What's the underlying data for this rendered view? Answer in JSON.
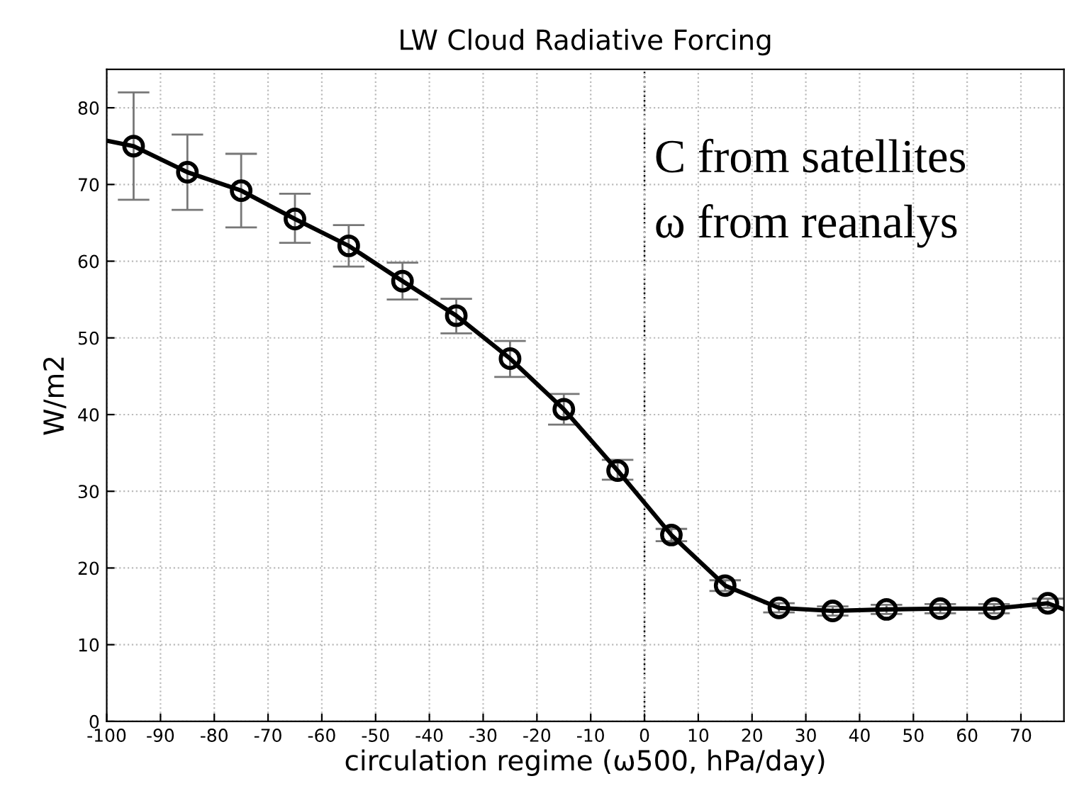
{
  "chart_data": {
    "type": "line",
    "title": "LW Cloud Radiative Forcing",
    "xlabel": "circulation regime (ω500, hPa/day)",
    "ylabel": "W/m2",
    "annotations": [
      "C from satellites",
      "ω from reanalys"
    ],
    "xlim": [
      -100,
      78
    ],
    "xticks": [
      -100,
      -90,
      -80,
      -70,
      -60,
      -50,
      -40,
      -30,
      -20,
      -10,
      0,
      10,
      20,
      30,
      40,
      50,
      60,
      70
    ],
    "ylim": [
      0,
      85
    ],
    "yticks": [
      0,
      10,
      20,
      30,
      40,
      50,
      60,
      70,
      80
    ],
    "grid": true,
    "legend": false,
    "ref_lines": [
      {
        "axis": "x",
        "value": 0,
        "line_style": "dotted",
        "color": "#000000"
      }
    ],
    "series": [
      {
        "color": "#000000",
        "marker": "none",
        "x": [
          -100,
          -95,
          -85,
          -75,
          -65,
          -55,
          -45,
          -35,
          -25,
          -15,
          -5,
          5,
          15,
          25,
          35,
          45,
          55,
          65,
          75,
          78
        ],
        "values": [
          75.7,
          75.0,
          71.6,
          69.2,
          65.5,
          62.0,
          57.4,
          52.9,
          47.3,
          40.7,
          32.7,
          24.3,
          17.7,
          14.8,
          14.4,
          14.6,
          14.7,
          14.7,
          15.4,
          14.6
        ]
      },
      {
        "type": "scatter",
        "color": "#000000",
        "marker": "circle",
        "x": [
          -95,
          -85,
          -75,
          -65,
          -55,
          -45,
          -35,
          -25,
          -15,
          -5,
          5,
          15,
          25,
          35,
          45,
          55,
          65,
          75
        ],
        "values": [
          75.0,
          71.6,
          69.2,
          65.5,
          62.0,
          57.4,
          52.9,
          47.3,
          40.7,
          32.7,
          24.3,
          17.7,
          14.8,
          14.4,
          14.6,
          14.7,
          14.7,
          15.4
        ],
        "errors": [
          [
            68,
            82
          ],
          [
            66.7,
            76.5
          ],
          [
            64.4,
            74
          ],
          [
            62.4,
            68.8
          ],
          [
            59.3,
            64.7
          ],
          [
            55,
            59.8
          ],
          [
            50.6,
            55.1
          ],
          [
            44.9,
            49.6
          ],
          [
            38.7,
            42.7
          ],
          [
            31.5,
            34.1
          ],
          [
            23.5,
            25.1
          ],
          [
            17,
            18.4
          ],
          [
            14.2,
            15.4
          ],
          [
            13.8,
            15
          ],
          [
            14,
            15.2
          ],
          [
            14.1,
            15.3
          ],
          [
            14.1,
            15.3
          ],
          [
            14.8,
            16
          ]
        ]
      }
    ]
  }
}
